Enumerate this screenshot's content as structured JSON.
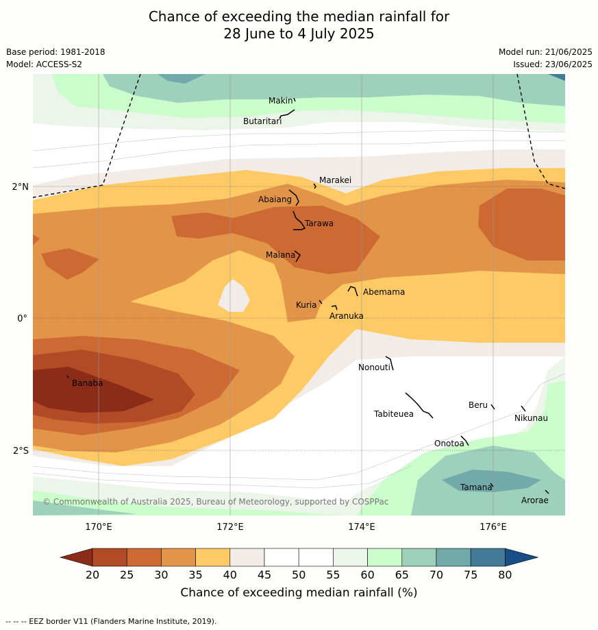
{
  "header": {
    "title_line1": "Chance of exceeding the median rainfall for",
    "title_line2": "28 June to 4 July 2025",
    "base_period": "Base period: 1981-2018",
    "model": "Model: ACCESS-S2",
    "model_run": "Model run: 21/06/2025",
    "issued": "Issued: 23/06/2025"
  },
  "map": {
    "lat_labels": [
      "2°N",
      "0°",
      "2°S"
    ],
    "lon_labels": [
      "170°E",
      "172°E",
      "174°E",
      "176°E"
    ],
    "copyright": "© Commonwealth of Australia 2025, Bureau of Meteorology, supported by COSPPac",
    "islands": [
      {
        "name": "Makin"
      },
      {
        "name": "Butaritari"
      },
      {
        "name": "Marakei"
      },
      {
        "name": "Abaiang"
      },
      {
        "name": "Tarawa"
      },
      {
        "name": "Maiana"
      },
      {
        "name": "Abemama"
      },
      {
        "name": "Kuria"
      },
      {
        "name": "Aranuka"
      },
      {
        "name": "Banaba"
      },
      {
        "name": "Nonouti"
      },
      {
        "name": "Tabiteuea"
      },
      {
        "name": "Beru"
      },
      {
        "name": "Nikunau"
      },
      {
        "name": "Onotoa"
      },
      {
        "name": "Tamana"
      },
      {
        "name": "Arorae"
      }
    ]
  },
  "legend": {
    "title": "Chance of exceeding median rainfall (%)",
    "ticks": [
      "20",
      "25",
      "30",
      "35",
      "40",
      "45",
      "50",
      "55",
      "60",
      "65",
      "70",
      "75",
      "80"
    ],
    "colors": {
      "below20": "#8a2c18",
      "c20_25": "#b34a27",
      "c25_30": "#cd6a33",
      "c30_35": "#e29549",
      "c35_40": "#fdca65",
      "c40_45": "#f1ece7",
      "c45_50": "#ffffff",
      "c50_55": "#ffffff",
      "c55_60": "#edf4ea",
      "c60_65": "#cbfccb",
      "c65_70": "#9ed1bc",
      "c70_75": "#72a9aa",
      "c75_80": "#427a98",
      "above80": "#174e86"
    }
  },
  "footer": {
    "eez_note": "--  --  -- EEZ border V11 (Flanders Marine Institute, 2019)."
  }
}
